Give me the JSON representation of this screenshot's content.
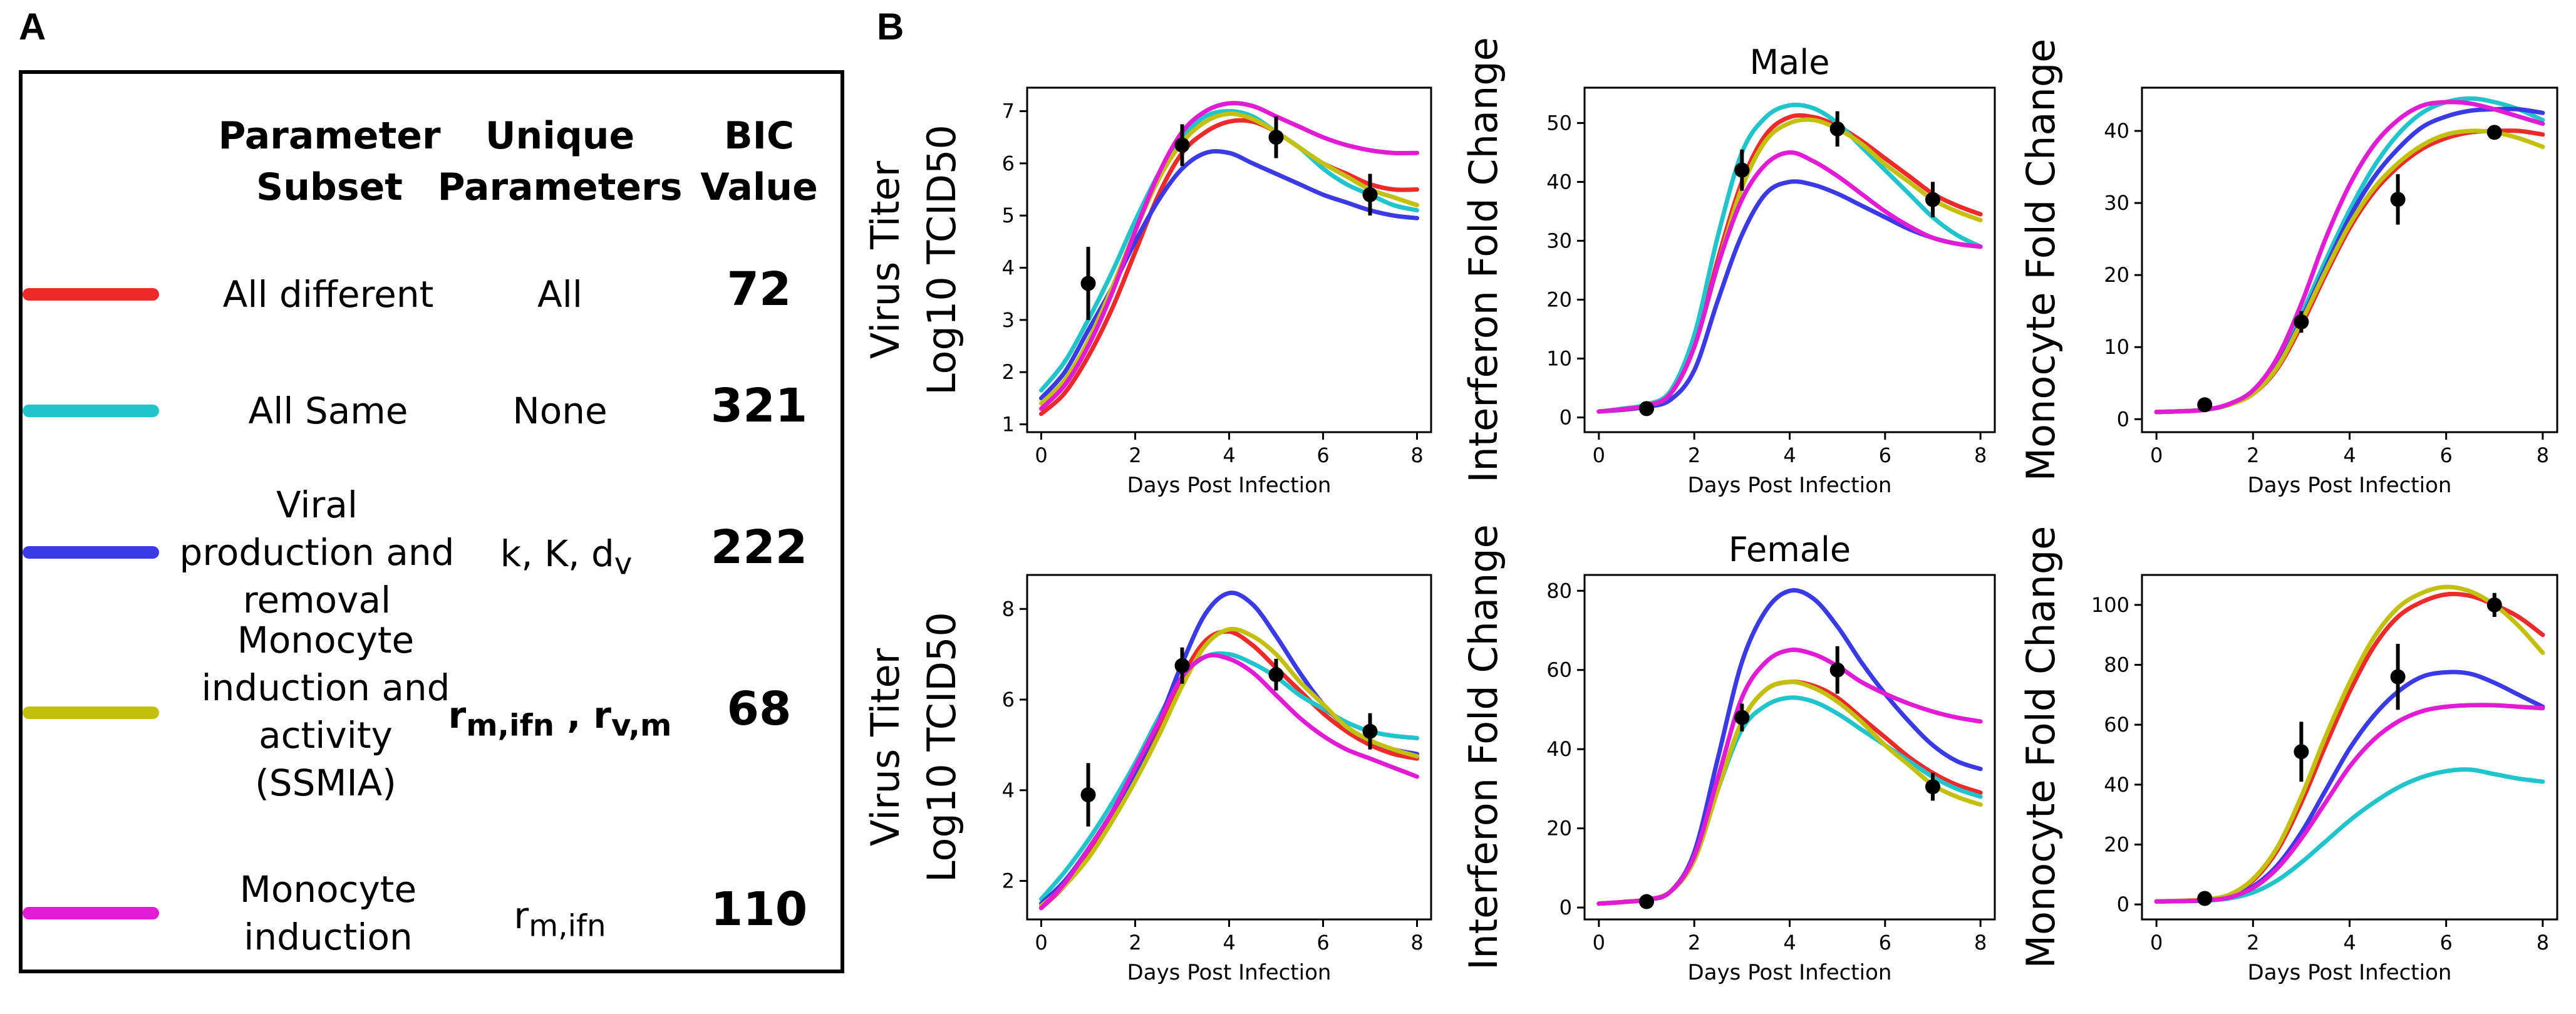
{
  "panel_labels": {
    "a": "A",
    "b": "B"
  },
  "table": {
    "headers": {
      "subset": [
        "Parameter",
        "Subset"
      ],
      "unique": [
        "Unique",
        "Parameters"
      ],
      "bic": [
        "BIC",
        "Value"
      ]
    },
    "rows": [
      {
        "color": "#ee2a2a",
        "subset": [
          "All different"
        ],
        "unique": "All",
        "bic": "72"
      },
      {
        "color": "#22c4cc",
        "subset": [
          "All Same"
        ],
        "unique": "None",
        "bic": "321"
      },
      {
        "color": "#3a3ae6",
        "subset": [
          "Viral",
          "production and",
          "removal"
        ],
        "unique_html": "k, K, d<sub>v</sub>",
        "bic": "222"
      },
      {
        "color": "#c2c00a",
        "subset": [
          "Monocyte",
          "induction and",
          "activity",
          "(SSMIA)"
        ],
        "unique_html": "<b>r<sub>m,ifn</sub> , r<sub>v,m</sub></b>",
        "bic": "68"
      },
      {
        "color": "#e21bd4",
        "subset": [
          "Monocyte",
          "induction"
        ],
        "unique_html": "r<sub>m,ifn</sub>",
        "bic": "110"
      }
    ]
  },
  "chart_data": [
    {
      "type": "line",
      "id": "virus-male",
      "title": "",
      "xlabel": "Days Post Infection",
      "ylabel": [
        "Virus Titer",
        "Log10 TCID50"
      ],
      "xlim": [
        -0.3,
        8.3
      ],
      "ylim": [
        0.85,
        7.45
      ],
      "xticks": [
        0,
        2,
        4,
        6,
        8
      ],
      "yticks": [
        1,
        2,
        3,
        4,
        5,
        6,
        7
      ],
      "x": [
        0,
        0.5,
        1,
        1.5,
        2,
        2.5,
        3,
        3.5,
        4,
        4.5,
        5,
        5.5,
        6,
        6.5,
        7,
        7.5,
        8
      ],
      "series": [
        {
          "name": "All different",
          "color": "#ee2a2a",
          "values": [
            1.2,
            1.6,
            2.3,
            3.2,
            4.3,
            5.4,
            6.2,
            6.6,
            6.8,
            6.8,
            6.6,
            6.3,
            6,
            5.8,
            5.6,
            5.5,
            5.5
          ]
        },
        {
          "name": "All Same",
          "color": "#22c4cc",
          "values": [
            1.65,
            2.2,
            3,
            3.9,
            4.9,
            5.8,
            6.5,
            6.9,
            7,
            6.9,
            6.6,
            6.3,
            5.9,
            5.6,
            5.4,
            5.2,
            5.1
          ]
        },
        {
          "name": "Viral production and removal",
          "color": "#3a3ae6",
          "values": [
            1.5,
            2,
            2.8,
            3.6,
            4.5,
            5.3,
            5.9,
            6.2,
            6.2,
            6,
            5.8,
            5.6,
            5.4,
            5.25,
            5.1,
            5,
            4.95
          ]
        },
        {
          "name": "SSMIA",
          "color": "#c2c00a",
          "values": [
            1.4,
            1.85,
            2.6,
            3.6,
            4.7,
            5.7,
            6.4,
            6.8,
            6.95,
            6.85,
            6.6,
            6.3,
            6,
            5.75,
            5.5,
            5.35,
            5.2
          ]
        },
        {
          "name": "Monocyte induction",
          "color": "#e21bd4",
          "values": [
            1.3,
            1.75,
            2.5,
            3.5,
            4.7,
            5.8,
            6.6,
            7,
            7.15,
            7.1,
            6.9,
            6.7,
            6.5,
            6.35,
            6.25,
            6.2,
            6.2
          ]
        }
      ],
      "points": [
        {
          "x": 1,
          "y": 3.7,
          "err": 0.7
        },
        {
          "x": 3,
          "y": 6.35,
          "err": 0.4
        },
        {
          "x": 5,
          "y": 6.5,
          "err": 0.4
        },
        {
          "x": 7,
          "y": 5.4,
          "err": 0.4
        }
      ]
    },
    {
      "type": "line",
      "id": "ifn-male",
      "title": "Male",
      "xlabel": "Days Post Infection",
      "ylabel": [
        "Interferon Fold Change"
      ],
      "xlim": [
        -0.3,
        8.3
      ],
      "ylim": [
        -2.5,
        56
      ],
      "xticks": [
        0,
        2,
        4,
        6,
        8
      ],
      "yticks": [
        0,
        10,
        20,
        30,
        40,
        50
      ],
      "x": [
        0,
        0.5,
        1,
        1.5,
        2,
        2.5,
        3,
        3.5,
        4,
        4.5,
        5,
        5.5,
        6,
        6.5,
        7,
        7.5,
        8
      ],
      "series": [
        {
          "name": "All different",
          "color": "#ee2a2a",
          "values": [
            1,
            1.4,
            2,
            4,
            12,
            27,
            40,
            48,
            51,
            51,
            49.5,
            47,
            44,
            41,
            38,
            36,
            34.5
          ]
        },
        {
          "name": "All Same",
          "color": "#22c4cc",
          "values": [
            1,
            1.5,
            2.2,
            4.5,
            14,
            31,
            45,
            51,
            53,
            52.5,
            50,
            46,
            42,
            38,
            34,
            31,
            29
          ]
        },
        {
          "name": "Viral production and removal",
          "color": "#3a3ae6",
          "values": [
            1,
            1.3,
            1.8,
            3,
            8,
            20,
            31,
            38,
            40,
            39.5,
            38,
            36,
            34,
            32,
            30.5,
            29.5,
            29
          ]
        },
        {
          "name": "SSMIA",
          "color": "#c2c00a",
          "values": [
            1,
            1.4,
            2,
            4,
            12,
            26,
            39,
            47,
            50,
            50.5,
            49,
            46.5,
            43,
            40,
            37,
            35,
            33.5
          ]
        },
        {
          "name": "Monocyte induction",
          "color": "#e21bd4",
          "values": [
            1,
            1.4,
            2,
            4,
            12,
            26,
            37,
            43,
            45,
            43.5,
            41,
            38,
            35,
            32.5,
            30.5,
            29.5,
            29
          ]
        }
      ],
      "points": [
        {
          "x": 1,
          "y": 1.5,
          "err": 0.8
        },
        {
          "x": 3,
          "y": 42,
          "err": 3.5
        },
        {
          "x": 5,
          "y": 49,
          "err": 3
        },
        {
          "x": 7,
          "y": 37,
          "err": 3
        }
      ]
    },
    {
      "type": "line",
      "id": "mono-male",
      "title": "",
      "xlabel": "Days Post Infection",
      "ylabel": [
        "Monocyte Fold Change"
      ],
      "xlim": [
        -0.3,
        8.3
      ],
      "ylim": [
        -1.8,
        46
      ],
      "xticks": [
        0,
        2,
        4,
        6,
        8
      ],
      "yticks": [
        0,
        10,
        20,
        30,
        40
      ],
      "x": [
        0,
        0.5,
        1,
        1.5,
        2,
        2.5,
        3,
        3.5,
        4,
        4.5,
        5,
        5.5,
        6,
        6.5,
        7,
        7.5,
        8
      ],
      "series": [
        {
          "name": "All different",
          "color": "#ee2a2a",
          "values": [
            1,
            1.1,
            1.3,
            2,
            3.5,
            7,
            13,
            20,
            26.5,
            31.5,
            35,
            37.5,
            39,
            39.8,
            40,
            40,
            39.5
          ]
        },
        {
          "name": "All Same",
          "color": "#22c4cc",
          "values": [
            1,
            1.1,
            1.3,
            2,
            3.8,
            7.8,
            14.5,
            22,
            29,
            35,
            39.5,
            42.5,
            44,
            44.5,
            44,
            43,
            41.5
          ]
        },
        {
          "name": "Viral production and removal",
          "color": "#3a3ae6",
          "values": [
            1,
            1.1,
            1.3,
            2,
            3.6,
            7.4,
            13.8,
            21,
            28,
            33.5,
            37.5,
            40.5,
            42,
            42.8,
            43,
            43,
            42.5
          ]
        },
        {
          "name": "SSMIA",
          "color": "#c2c00a",
          "values": [
            1,
            1.1,
            1.3,
            2,
            3.5,
            7.2,
            13.5,
            20.5,
            27,
            32,
            35.5,
            38,
            39.5,
            40,
            39.8,
            39,
            37.8
          ]
        },
        {
          "name": "Monocyte induction",
          "color": "#e21bd4",
          "values": [
            1,
            1.1,
            1.3,
            2.1,
            4,
            8.5,
            16,
            25,
            32.5,
            38,
            41.5,
            43.5,
            44,
            43.8,
            43,
            42,
            41
          ]
        }
      ],
      "points": [
        {
          "x": 1,
          "y": 2,
          "err": 0.6
        },
        {
          "x": 3,
          "y": 13.5,
          "err": 1.5
        },
        {
          "x": 5,
          "y": 30.5,
          "err": 3.5
        },
        {
          "x": 7,
          "y": 39.8,
          "err": 1
        }
      ]
    },
    {
      "type": "line",
      "id": "virus-female",
      "title": "",
      "xlabel": "Days Post Infection",
      "ylabel": [
        "Virus Titer",
        "Log10 TCID50"
      ],
      "xlim": [
        -0.3,
        8.3
      ],
      "ylim": [
        1.15,
        8.75
      ],
      "xticks": [
        0,
        2,
        4,
        6,
        8
      ],
      "yticks": [
        2,
        4,
        6,
        8
      ],
      "x": [
        0,
        0.5,
        1,
        1.5,
        2,
        2.5,
        3,
        3.5,
        4,
        4.5,
        5,
        5.5,
        6,
        6.5,
        7,
        7.5,
        8
      ],
      "series": [
        {
          "name": "All different",
          "color": "#ee2a2a",
          "values": [
            1.4,
            1.9,
            2.6,
            3.4,
            4.3,
            5.4,
            6.5,
            7.3,
            7.5,
            7.2,
            6.7,
            6.2,
            5.7,
            5.3,
            5,
            4.8,
            4.7
          ]
        },
        {
          "name": "All Same",
          "color": "#22c4cc",
          "values": [
            1.6,
            2.2,
            2.9,
            3.7,
            4.6,
            5.6,
            6.5,
            6.95,
            7,
            6.8,
            6.5,
            6.1,
            5.8,
            5.5,
            5.3,
            5.2,
            5.15
          ]
        },
        {
          "name": "Viral production and removal",
          "color": "#3a3ae6",
          "values": [
            1.5,
            2,
            2.7,
            3.5,
            4.4,
            5.5,
            6.8,
            7.9,
            8.35,
            8.1,
            7.4,
            6.6,
            5.9,
            5.4,
            5.1,
            4.9,
            4.8
          ]
        },
        {
          "name": "SSMIA",
          "color": "#c2c00a",
          "values": [
            1.45,
            1.9,
            2.5,
            3.3,
            4.2,
            5.2,
            6.3,
            7.2,
            7.55,
            7.4,
            7,
            6.4,
            5.9,
            5.4,
            5.1,
            4.9,
            4.75
          ]
        },
        {
          "name": "Monocyte induction",
          "color": "#e21bd4",
          "values": [
            1.4,
            1.95,
            2.7,
            3.5,
            4.5,
            5.5,
            6.5,
            6.95,
            6.9,
            6.6,
            6.1,
            5.6,
            5.2,
            4.9,
            4.7,
            4.5,
            4.3
          ]
        }
      ],
      "points": [
        {
          "x": 1,
          "y": 3.9,
          "err": 0.7
        },
        {
          "x": 3,
          "y": 6.75,
          "err": 0.4
        },
        {
          "x": 5,
          "y": 6.55,
          "err": 0.35
        },
        {
          "x": 7,
          "y": 5.3,
          "err": 0.4
        }
      ]
    },
    {
      "type": "line",
      "id": "ifn-female",
      "title": "Female",
      "xlabel": "Days Post Infection",
      "ylabel": [
        "Interferon Fold Change"
      ],
      "xlim": [
        -0.3,
        8.3
      ],
      "ylim": [
        -3,
        84
      ],
      "xticks": [
        0,
        2,
        4,
        6,
        8
      ],
      "yticks": [
        0,
        20,
        40,
        60,
        80
      ],
      "x": [
        0,
        0.5,
        1,
        1.5,
        2,
        2.5,
        3,
        3.5,
        4,
        4.5,
        5,
        5.5,
        6,
        6.5,
        7,
        7.5,
        8
      ],
      "series": [
        {
          "name": "All different",
          "color": "#ee2a2a",
          "values": [
            1,
            1.4,
            2,
            4,
            12,
            30,
            47,
            55,
            57,
            56,
            53,
            48,
            43,
            38,
            34,
            31,
            29
          ]
        },
        {
          "name": "All Same",
          "color": "#22c4cc",
          "values": [
            1,
            1.4,
            2,
            4,
            12,
            30,
            45,
            51,
            53,
            52,
            49,
            45,
            41,
            37,
            33,
            30,
            28
          ]
        },
        {
          "name": "Viral production and removal",
          "color": "#3a3ae6",
          "values": [
            1,
            1.4,
            2,
            4,
            14,
            38,
            62,
            75,
            80,
            78,
            71,
            62,
            54,
            47,
            41,
            37,
            35
          ]
        },
        {
          "name": "SSMIA",
          "color": "#c2c00a",
          "values": [
            1,
            1.4,
            2,
            4,
            12,
            30,
            47,
            55,
            57,
            55.5,
            52,
            47,
            41,
            36,
            31,
            28,
            26
          ]
        },
        {
          "name": "Monocyte induction",
          "color": "#e21bd4",
          "values": [
            1,
            1.4,
            2,
            4,
            13,
            33,
            53,
            62,
            65,
            64,
            61,
            57,
            54,
            51.5,
            49.5,
            48,
            47
          ]
        }
      ],
      "points": [
        {
          "x": 1,
          "y": 1.5,
          "err": 1.2
        },
        {
          "x": 3,
          "y": 48,
          "err": 3.5
        },
        {
          "x": 5,
          "y": 60,
          "err": 6
        },
        {
          "x": 7,
          "y": 30.5,
          "err": 3.5
        }
      ]
    },
    {
      "type": "line",
      "id": "mono-female",
      "title": "",
      "xlabel": "Days Post Infection",
      "ylabel": [
        "Monocyte Fold Change"
      ],
      "xlim": [
        -0.3,
        8.3
      ],
      "ylim": [
        -5,
        110
      ],
      "xticks": [
        0,
        2,
        4,
        6,
        8
      ],
      "yticks": [
        0,
        20,
        40,
        60,
        80,
        100
      ],
      "x": [
        0,
        0.5,
        1,
        1.5,
        2,
        2.5,
        3,
        3.5,
        4,
        4.5,
        5,
        5.5,
        6,
        6.5,
        7,
        7.5,
        8
      ],
      "series": [
        {
          "name": "All different",
          "color": "#ee2a2a",
          "values": [
            1,
            1.2,
            1.6,
            3,
            8,
            18,
            34,
            53,
            71,
            86,
            96,
            101,
            103.5,
            103,
            100,
            96,
            90
          ]
        },
        {
          "name": "All Same",
          "color": "#22c4cc",
          "values": [
            1,
            1.1,
            1.3,
            2,
            4,
            8,
            14,
            21,
            28,
            34,
            39,
            42.5,
            44.5,
            45,
            43.5,
            42,
            41
          ]
        },
        {
          "name": "Viral production and removal",
          "color": "#3a3ae6",
          "values": [
            1,
            1.1,
            1.4,
            2.5,
            6,
            13,
            24,
            38,
            52,
            63,
            71,
            76,
            77.5,
            77,
            74,
            70,
            66
          ]
        },
        {
          "name": "SSMIA",
          "color": "#c2c00a",
          "values": [
            1,
            1.2,
            1.7,
            3.2,
            8.5,
            19,
            36,
            56,
            74,
            89,
            99,
            104,
            106,
            104.5,
            100,
            93,
            84
          ]
        },
        {
          "name": "Monocyte induction",
          "color": "#e21bd4",
          "values": [
            1,
            1.1,
            1.4,
            2.3,
            5.5,
            12,
            22,
            34,
            46,
            55,
            61,
            64.5,
            66,
            66.5,
            66.5,
            66,
            65.5
          ]
        }
      ],
      "points": [
        {
          "x": 1,
          "y": 2,
          "err": 1.5
        },
        {
          "x": 3,
          "y": 51,
          "err": 10
        },
        {
          "x": 5,
          "y": 76,
          "err": 11
        },
        {
          "x": 7,
          "y": 100,
          "err": 4
        }
      ]
    }
  ]
}
